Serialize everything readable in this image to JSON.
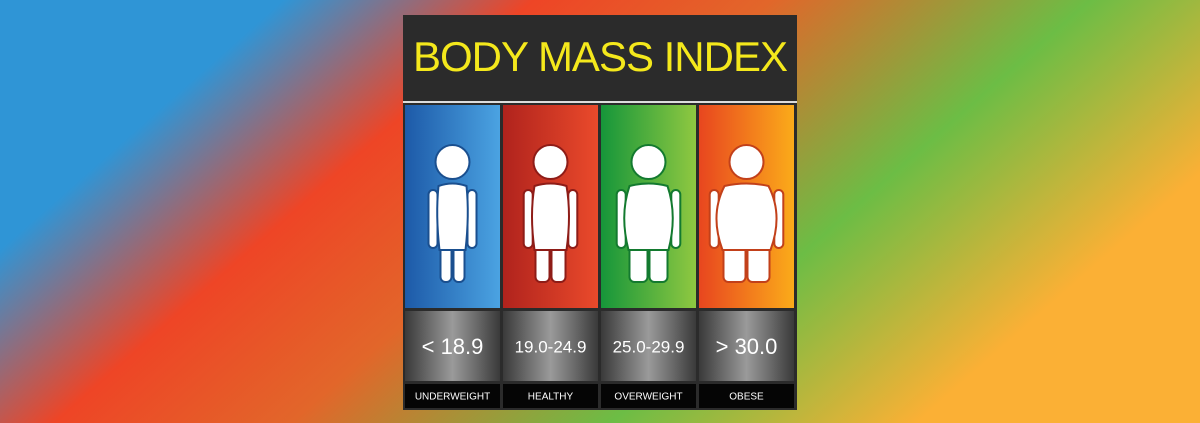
{
  "header": {
    "title": "BODY MASS INDEX"
  },
  "categories": [
    {
      "range": "< 18.9",
      "label": "UNDERWEIGHT"
    },
    {
      "range": "19.0-24.9",
      "label": "HEALTHY"
    },
    {
      "range": "25.0-29.9",
      "label": "OVERWEIGHT"
    },
    {
      "range": "> 30.0",
      "label": "OBESE"
    }
  ]
}
